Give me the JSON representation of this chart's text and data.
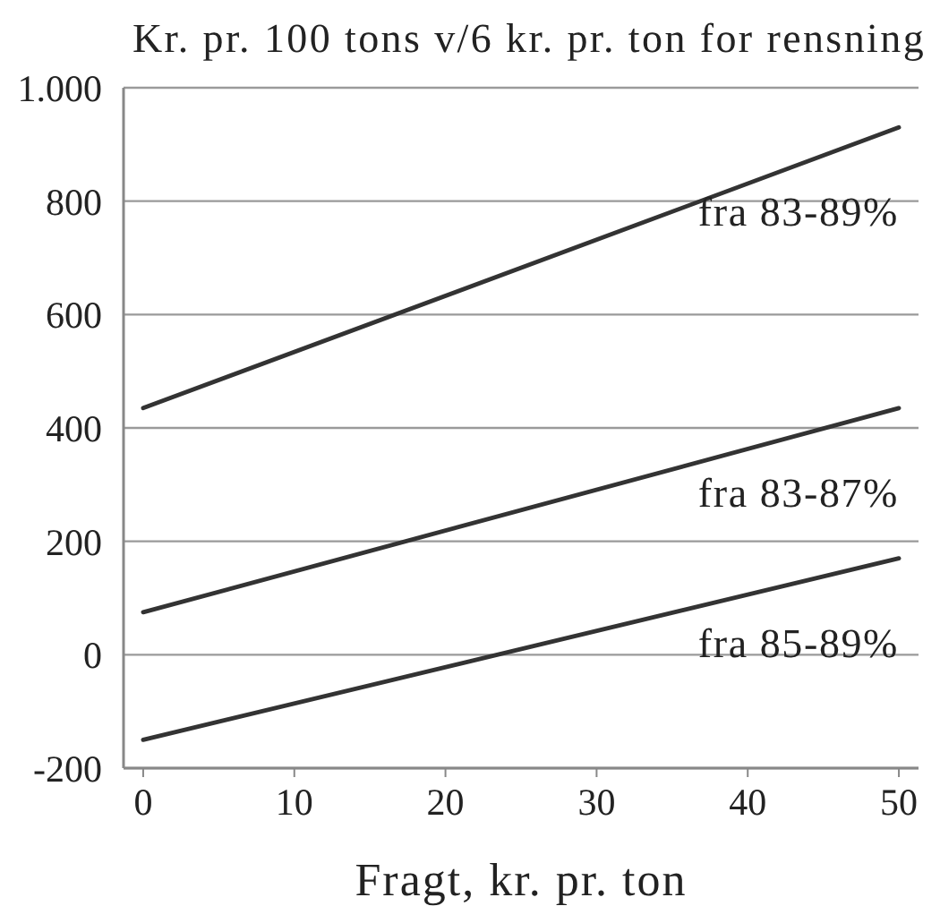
{
  "chart_data": {
    "type": "line",
    "title": "Kr. pr. 100 tons v/6 kr. pr. ton for rensning",
    "xlabel": "Fragt, kr. pr. ton",
    "x": [
      0,
      50
    ],
    "series": [
      {
        "name": "fra 83-89%",
        "color": "#333333",
        "values": [
          435,
          930
        ]
      },
      {
        "name": "fra 83-87%",
        "color": "#333333",
        "values": [
          75,
          435
        ]
      },
      {
        "name": "fra 85-89%",
        "color": "#333333",
        "values": [
          -150,
          170
        ]
      }
    ],
    "xlim": [
      -1.3,
      51.3
    ],
    "xticks": [
      0,
      10,
      20,
      30,
      40,
      50
    ],
    "ylim": [
      -200,
      1000
    ],
    "yticks": [
      -200,
      0,
      200,
      400,
      600,
      800,
      {
        "value": 1000,
        "label": "1.000"
      }
    ],
    "grid": "y",
    "legend": false,
    "marker": "none",
    "line_style": "solid"
  }
}
